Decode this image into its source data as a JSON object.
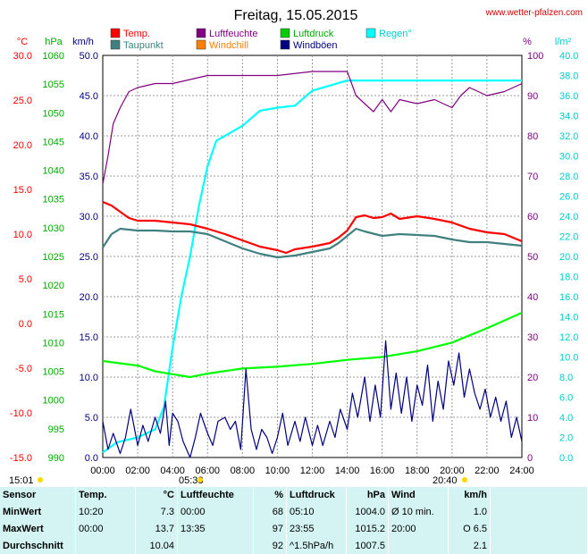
{
  "header": {
    "title": "Freitag, 15.05.2015",
    "site": "www.wetter-pfalzen.com"
  },
  "units": {
    "temp": "°C",
    "pressure": "hPa",
    "wind": "km/h",
    "humidity": "%",
    "rain": "l/m²"
  },
  "legend": [
    {
      "label": "Temp.",
      "color": "#ff0000"
    },
    {
      "label": "Luftfeuchte",
      "color": "#800080"
    },
    {
      "label": "Luftdruck",
      "color": "#00cc00"
    },
    {
      "label": "Regen°",
      "color": "#00ffff"
    },
    {
      "label": "Taupunkt",
      "color": "#408080"
    },
    {
      "label": "Windchill",
      "color": "#ff8000"
    },
    {
      "label": "Windböen",
      "color": "#000080"
    }
  ],
  "markers": {
    "start": "15:01",
    "sunrise": "05:38",
    "sunset": "20:40"
  },
  "chart_data": {
    "type": "line",
    "x_ticks": [
      "00:00",
      "02:00",
      "04:00",
      "06:00",
      "08:00",
      "10:00",
      "12:00",
      "14:00",
      "16:00",
      "18:00",
      "20:00",
      "22:00",
      "24:00"
    ],
    "axes": {
      "temp": {
        "label": "°C",
        "range": [
          -15,
          30
        ],
        "ticks": [
          "30.0",
          "25.0",
          "20.0",
          "15.0",
          "10.0",
          "5.0",
          "0.0",
          "-5.0",
          "-10.0",
          "-15.0"
        ]
      },
      "pressure": {
        "label": "hPa",
        "range": [
          990,
          1060
        ],
        "ticks": [
          "1060",
          "1055",
          "1050",
          "1045",
          "1040",
          "1035",
          "1030",
          "1025",
          "1020",
          "1015",
          "1010",
          "1005",
          "1000",
          "995",
          "990"
        ]
      },
      "wind": {
        "label": "km/h",
        "range": [
          0,
          50
        ],
        "ticks": [
          "50.0",
          "45.0",
          "40.0",
          "35.0",
          "30.0",
          "25.0",
          "20.0",
          "15.0",
          "10.0",
          "5.0",
          "0.0"
        ]
      },
      "humidity": {
        "label": "%",
        "range": [
          0,
          100
        ],
        "ticks": [
          "100",
          "90",
          "80",
          "70",
          "60",
          "50",
          "40",
          "30",
          "20",
          "10",
          "0"
        ]
      },
      "rain": {
        "label": "l/m²",
        "range": [
          0,
          40
        ],
        "ticks": [
          "40.0",
          "38.0",
          "36.0",
          "34.0",
          "32.0",
          "30.0",
          "28.0",
          "26.0",
          "24.0",
          "22.0",
          "20.0",
          "18.0",
          "16.0",
          "14.0",
          "12.0",
          "10.0",
          "8.0",
          "6.0",
          "4.0",
          "2.0",
          "0.0"
        ]
      }
    },
    "series": [
      {
        "name": "Temp.",
        "axis": "temp",
        "color": "#ff0000",
        "points": [
          [
            0,
            13.6
          ],
          [
            0.5,
            13.2
          ],
          [
            1,
            12.5
          ],
          [
            1.5,
            11.8
          ],
          [
            2,
            11.5
          ],
          [
            3,
            11.5
          ],
          [
            4,
            11.3
          ],
          [
            5,
            11.1
          ],
          [
            6,
            10.6
          ],
          [
            7,
            10.0
          ],
          [
            8,
            9.3
          ],
          [
            9,
            8.6
          ],
          [
            10,
            8.2
          ],
          [
            10.5,
            7.9
          ],
          [
            11,
            8.3
          ],
          [
            12,
            8.6
          ],
          [
            13,
            9.0
          ],
          [
            13.5,
            9.6
          ],
          [
            14,
            10.4
          ],
          [
            14.5,
            11.9
          ],
          [
            15,
            12.1
          ],
          [
            15.5,
            11.8
          ],
          [
            16,
            11.9
          ],
          [
            16.5,
            12.3
          ],
          [
            17,
            11.7
          ],
          [
            18,
            12.0
          ],
          [
            19,
            11.7
          ],
          [
            20,
            11.3
          ],
          [
            21,
            10.6
          ],
          [
            22,
            10.2
          ],
          [
            23,
            10.0
          ],
          [
            24,
            9.2
          ]
        ]
      },
      {
        "name": "Taupunkt",
        "axis": "temp",
        "color": "#408080",
        "points": [
          [
            0,
            8.5
          ],
          [
            0.5,
            10.0
          ],
          [
            1,
            10.6
          ],
          [
            2,
            10.4
          ],
          [
            3,
            10.4
          ],
          [
            4,
            10.3
          ],
          [
            5,
            10.3
          ],
          [
            6,
            10.0
          ],
          [
            7,
            9.2
          ],
          [
            8,
            8.4
          ],
          [
            9,
            7.8
          ],
          [
            10,
            7.4
          ],
          [
            11,
            7.6
          ],
          [
            12,
            8.0
          ],
          [
            13,
            8.4
          ],
          [
            13.5,
            9.0
          ],
          [
            14,
            9.8
          ],
          [
            14.5,
            10.6
          ],
          [
            15,
            10.3
          ],
          [
            16,
            9.8
          ],
          [
            17,
            10.0
          ],
          [
            18,
            9.9
          ],
          [
            19,
            9.8
          ],
          [
            20,
            9.4
          ],
          [
            21,
            9.1
          ],
          [
            22,
            9.1
          ],
          [
            23,
            8.9
          ],
          [
            24,
            8.7
          ]
        ]
      },
      {
        "name": "Luftfeuchte",
        "axis": "humidity",
        "color": "#800080",
        "points": [
          [
            0,
            68
          ],
          [
            0.3,
            75
          ],
          [
            0.6,
            83
          ],
          [
            1,
            87
          ],
          [
            1.5,
            91
          ],
          [
            2,
            92
          ],
          [
            3,
            93
          ],
          [
            4,
            93
          ],
          [
            5,
            94
          ],
          [
            6,
            95
          ],
          [
            8,
            95
          ],
          [
            10,
            95
          ],
          [
            12,
            96
          ],
          [
            13,
            96
          ],
          [
            14,
            96
          ],
          [
            14.5,
            90
          ],
          [
            15,
            88
          ],
          [
            15.5,
            86
          ],
          [
            16,
            89
          ],
          [
            16.5,
            86
          ],
          [
            17,
            89
          ],
          [
            18,
            88
          ],
          [
            19,
            89
          ],
          [
            20,
            87
          ],
          [
            20.5,
            90
          ],
          [
            21,
            92
          ],
          [
            22,
            90
          ],
          [
            23,
            91
          ],
          [
            24,
            93
          ]
        ]
      },
      {
        "name": "Luftdruck",
        "axis": "pressure",
        "color": "#00ff00",
        "points": [
          [
            0,
            1006.8
          ],
          [
            1,
            1006.4
          ],
          [
            2,
            1006.0
          ],
          [
            3,
            1005.0
          ],
          [
            4,
            1004.5
          ],
          [
            5,
            1004.0
          ],
          [
            6,
            1004.6
          ],
          [
            8,
            1005.5
          ],
          [
            10,
            1005.8
          ],
          [
            12,
            1006.3
          ],
          [
            14,
            1007.0
          ],
          [
            16,
            1007.5
          ],
          [
            18,
            1008.5
          ],
          [
            20,
            1010.0
          ],
          [
            22,
            1012.5
          ],
          [
            24,
            1015.2
          ]
        ]
      },
      {
        "name": "Regen°",
        "axis": "rain",
        "color": "#00ffff",
        "points": [
          [
            0,
            0.5
          ],
          [
            0.8,
            1.5
          ],
          [
            2,
            2.0
          ],
          [
            3,
            2.8
          ],
          [
            3.5,
            5.0
          ],
          [
            4,
            11.0
          ],
          [
            4.5,
            16.0
          ],
          [
            5,
            20.0
          ],
          [
            5.5,
            25.0
          ],
          [
            6,
            29.0
          ],
          [
            6.5,
            31.5
          ],
          [
            7,
            32.0
          ],
          [
            8,
            33.0
          ],
          [
            9,
            34.5
          ],
          [
            10,
            34.8
          ],
          [
            11,
            35.0
          ],
          [
            12,
            36.5
          ],
          [
            13,
            37.0
          ],
          [
            14,
            37.5
          ],
          [
            16,
            37.5
          ],
          [
            18,
            37.5
          ],
          [
            20,
            37.5
          ],
          [
            22,
            37.5
          ],
          [
            24,
            37.5
          ]
        ]
      },
      {
        "name": "Windböen",
        "axis": "wind",
        "color": "#000080",
        "points": [
          [
            0,
            4.5
          ],
          [
            0.3,
            1.0
          ],
          [
            0.6,
            3.0
          ],
          [
            1,
            0.5
          ],
          [
            1.3,
            2.5
          ],
          [
            1.6,
            6.0
          ],
          [
            2,
            1.5
          ],
          [
            2.3,
            4.0
          ],
          [
            2.6,
            2.0
          ],
          [
            3,
            5.0
          ],
          [
            3.3,
            3.0
          ],
          [
            3.6,
            7.0
          ],
          [
            3.8,
            1.5
          ],
          [
            4,
            5.5
          ],
          [
            4.3,
            4.5
          ],
          [
            4.6,
            2.0
          ],
          [
            5,
            0.0
          ],
          [
            5.3,
            2.5
          ],
          [
            5.6,
            5.5
          ],
          [
            6,
            3.0
          ],
          [
            6.3,
            1.5
          ],
          [
            6.6,
            4.5
          ],
          [
            7,
            5.0
          ],
          [
            7.3,
            3.5
          ],
          [
            7.6,
            4.5
          ],
          [
            7.9,
            1.0
          ],
          [
            8.2,
            11.0
          ],
          [
            8.5,
            3.5
          ],
          [
            8.8,
            1.0
          ],
          [
            9.1,
            3.5
          ],
          [
            9.4,
            2.5
          ],
          [
            9.7,
            0.5
          ],
          [
            10,
            2.5
          ],
          [
            10.3,
            5.5
          ],
          [
            10.6,
            1.5
          ],
          [
            11,
            4.5
          ],
          [
            11.3,
            2.0
          ],
          [
            11.6,
            5.0
          ],
          [
            12,
            1.5
          ],
          [
            12.3,
            4.0
          ],
          [
            12.6,
            1.5
          ],
          [
            13,
            4.5
          ],
          [
            13.3,
            2.5
          ],
          [
            13.6,
            6.0
          ],
          [
            14,
            3.5
          ],
          [
            14.3,
            8.0
          ],
          [
            14.6,
            5.0
          ],
          [
            15,
            10.0
          ],
          [
            15.3,
            4.5
          ],
          [
            15.6,
            9.0
          ],
          [
            15.9,
            5.0
          ],
          [
            16.2,
            14.5
          ],
          [
            16.5,
            6.0
          ],
          [
            16.8,
            10.5
          ],
          [
            17.1,
            5.5
          ],
          [
            17.4,
            10.0
          ],
          [
            17.7,
            4.5
          ],
          [
            18,
            9.0
          ],
          [
            18.3,
            6.5
          ],
          [
            18.6,
            11.5
          ],
          [
            18.9,
            4.5
          ],
          [
            19.2,
            9.5
          ],
          [
            19.5,
            6.0
          ],
          [
            19.8,
            12.0
          ],
          [
            20.1,
            9.0
          ],
          [
            20.4,
            13.0
          ],
          [
            20.7,
            7.5
          ],
          [
            21,
            11.0
          ],
          [
            21.3,
            8.0
          ],
          [
            21.6,
            6.0
          ],
          [
            21.9,
            8.5
          ],
          [
            22.2,
            5.0
          ],
          [
            22.5,
            7.5
          ],
          [
            22.8,
            4.5
          ],
          [
            23.1,
            7.0
          ],
          [
            23.4,
            2.5
          ],
          [
            23.7,
            5.0
          ],
          [
            24,
            2.0
          ]
        ]
      }
    ],
    "grid": true
  },
  "stats": {
    "headers": [
      "Sensor",
      "Temp.",
      "°C",
      "Luftfeuchte",
      "%",
      "Luftdruck",
      "hPa",
      "Wind",
      "km/h"
    ],
    "rows": [
      {
        "label": "MinWert",
        "cells": [
          "10:20",
          "7.3",
          "00:00",
          "68",
          "05:10",
          "1004.0",
          "Ø 10 min.",
          "1.0"
        ]
      },
      {
        "label": "MaxWert",
        "cells": [
          "00:00",
          "13.7",
          "13:35",
          "97",
          "23:55",
          "1015.2",
          "20:00",
          "O 6.5"
        ]
      },
      {
        "label": "Durchschnitt",
        "cells": [
          "",
          "10.04",
          "",
          "92",
          "^1.5hPa/h",
          "1007.5",
          "",
          "2.1"
        ]
      }
    ]
  }
}
